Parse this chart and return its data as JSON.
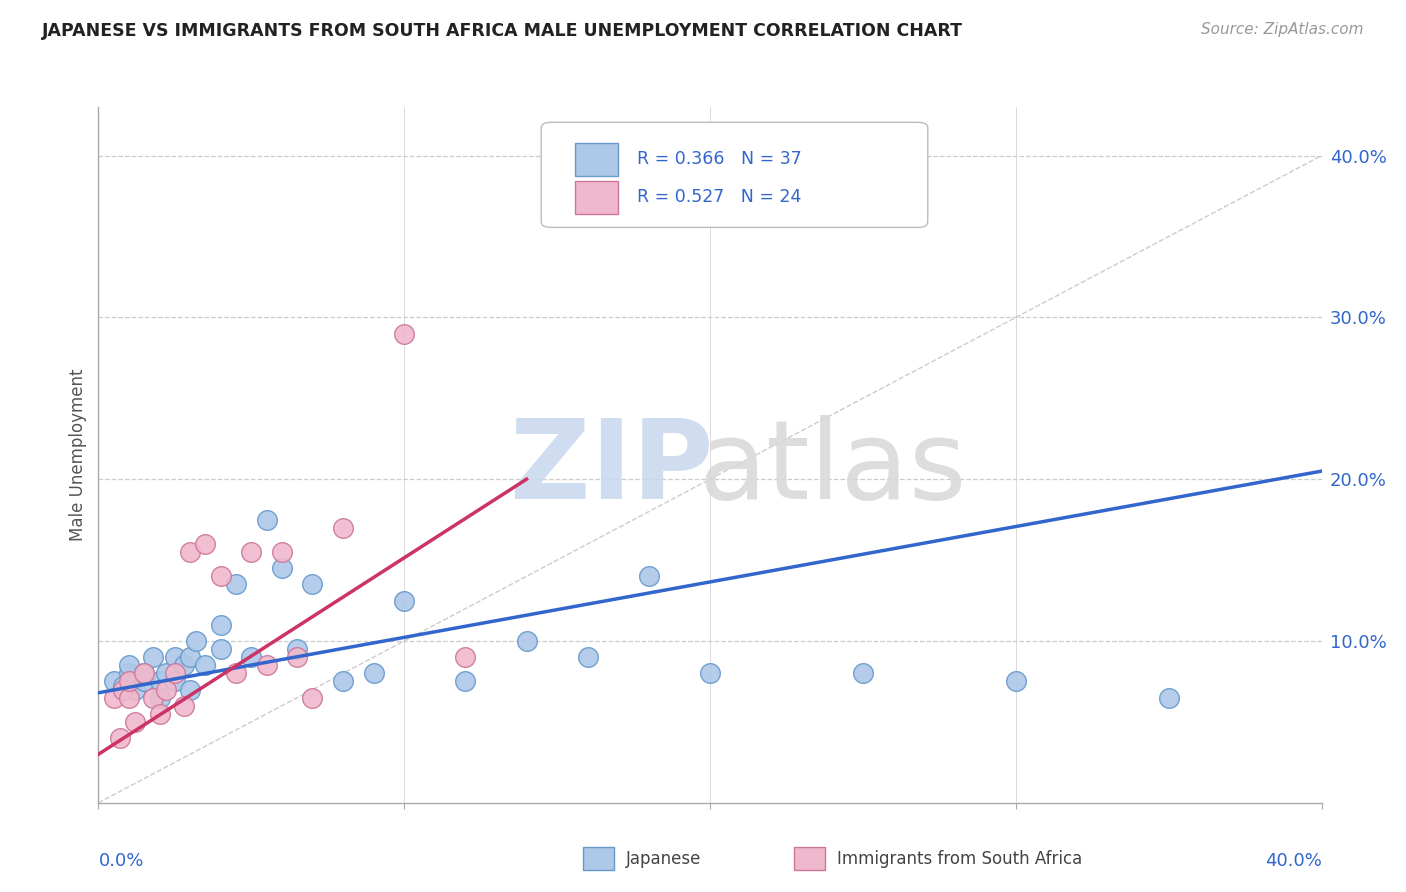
{
  "title": "JAPANESE VS IMMIGRANTS FROM SOUTH AFRICA MALE UNEMPLOYMENT CORRELATION CHART",
  "source": "Source: ZipAtlas.com",
  "ylabel": "Male Unemployment",
  "xlim": [
    0.0,
    0.4
  ],
  "ylim": [
    0.0,
    0.43
  ],
  "watermark_zip": "ZIP",
  "watermark_atlas": "atlas",
  "japanese_color": "#adc8e8",
  "japanese_edge": "#6699cc",
  "sa_color": "#f0b8cc",
  "sa_edge": "#cc7799",
  "line1_color": "#3366cc",
  "line2_color": "#cc3366",
  "diagonal_color": "#cccccc",
  "japanese_x": [
    0.005,
    0.008,
    0.01,
    0.01,
    0.012,
    0.015,
    0.015,
    0.018,
    0.02,
    0.02,
    0.022,
    0.025,
    0.025,
    0.028,
    0.03,
    0.03,
    0.032,
    0.035,
    0.04,
    0.04,
    0.045,
    0.05,
    0.055,
    0.06,
    0.065,
    0.07,
    0.08,
    0.09,
    0.1,
    0.12,
    0.14,
    0.16,
    0.18,
    0.2,
    0.25,
    0.3,
    0.35
  ],
  "japanese_y": [
    0.075,
    0.072,
    0.08,
    0.085,
    0.07,
    0.075,
    0.08,
    0.09,
    0.065,
    0.075,
    0.08,
    0.075,
    0.09,
    0.085,
    0.07,
    0.09,
    0.1,
    0.085,
    0.095,
    0.11,
    0.135,
    0.09,
    0.175,
    0.145,
    0.095,
    0.135,
    0.075,
    0.08,
    0.125,
    0.075,
    0.1,
    0.09,
    0.14,
    0.08,
    0.08,
    0.075,
    0.065
  ],
  "sa_x": [
    0.005,
    0.007,
    0.008,
    0.01,
    0.01,
    0.012,
    0.015,
    0.018,
    0.02,
    0.022,
    0.025,
    0.028,
    0.03,
    0.035,
    0.04,
    0.045,
    0.05,
    0.055,
    0.06,
    0.065,
    0.07,
    0.08,
    0.1,
    0.12
  ],
  "sa_y": [
    0.065,
    0.04,
    0.07,
    0.065,
    0.075,
    0.05,
    0.08,
    0.065,
    0.055,
    0.07,
    0.08,
    0.06,
    0.155,
    0.16,
    0.14,
    0.08,
    0.155,
    0.085,
    0.155,
    0.09,
    0.065,
    0.17,
    0.29,
    0.09
  ],
  "blue_line_x": [
    0.0,
    0.4
  ],
  "blue_line_y_start": 0.068,
  "blue_line_y_end": 0.205,
  "pink_line_x_start": 0.0,
  "pink_line_x_end": 0.14,
  "pink_line_y_start": 0.03,
  "pink_line_y_end": 0.2
}
